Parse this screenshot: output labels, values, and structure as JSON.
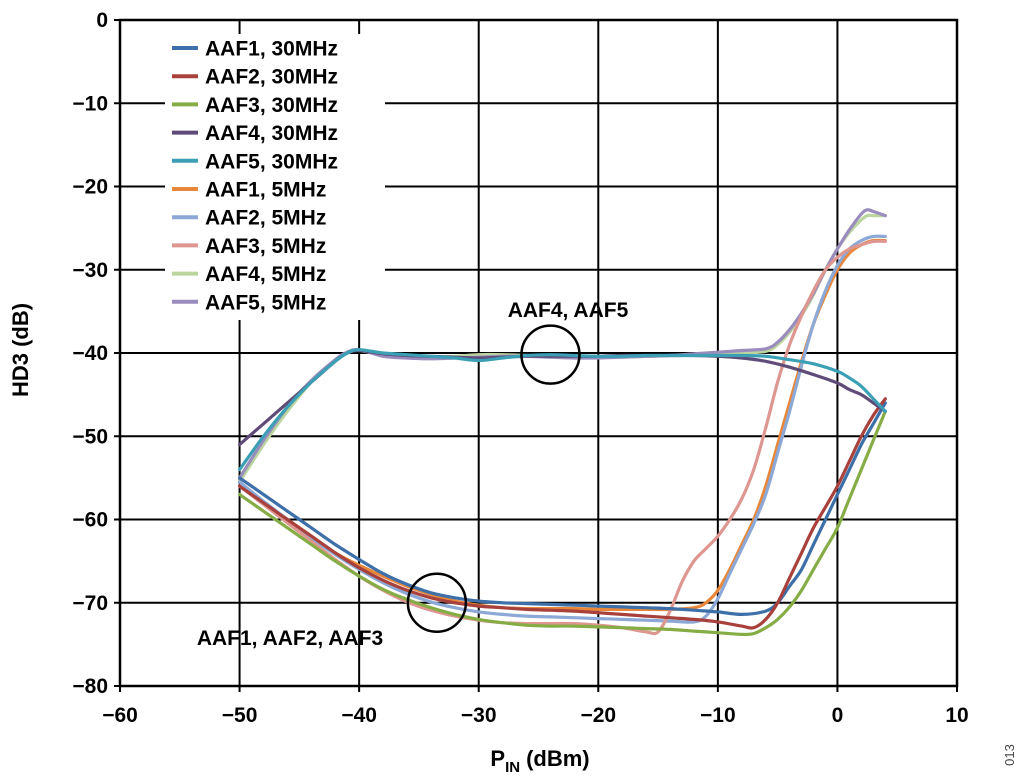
{
  "figure_id": "013",
  "chart_data": {
    "type": "line",
    "title": "",
    "xlabel": "P",
    "xlabel_sub": "IN",
    "xlabel_unit": "(dBm)",
    "ylabel": "HD3 (dB)",
    "xlim": [
      -60,
      10
    ],
    "ylim": [
      -80,
      0
    ],
    "xticks": [
      -60,
      -50,
      -40,
      -30,
      -20,
      -10,
      0,
      10
    ],
    "yticks": [
      0,
      -10,
      -20,
      -30,
      -40,
      -50,
      -60,
      -70,
      -80
    ],
    "xtick_labels": [
      "−60",
      "−50",
      "−40",
      "−30",
      "−20",
      "−10",
      "0",
      "10"
    ],
    "ytick_labels": [
      "0",
      "−10",
      "−20",
      "−30",
      "−40",
      "−50",
      "−60",
      "−70",
      "−80"
    ],
    "grid": true,
    "legend_position": "top-left",
    "series": [
      {
        "name": "AAF1, 30MHz",
        "color": "#3d6fa8",
        "x": [
          -50,
          -48,
          -46,
          -44,
          -42,
          -40,
          -38,
          -36,
          -34,
          -32,
          -30,
          -28,
          -26,
          -24,
          -22,
          -20,
          -18,
          -16,
          -14,
          -12,
          -10,
          -8,
          -6,
          -5,
          -4,
          -3,
          -2,
          -1,
          0,
          1,
          2,
          3,
          4
        ],
        "y": [
          -55,
          -57,
          -59,
          -61,
          -63,
          -64.8,
          -66.5,
          -67.8,
          -68.8,
          -69.4,
          -69.8,
          -70,
          -70.1,
          -70.2,
          -70.3,
          -70.4,
          -70.5,
          -70.6,
          -70.7,
          -70.9,
          -71.1,
          -71.4,
          -71,
          -70,
          -68,
          -66,
          -63,
          -60,
          -57,
          -54,
          -51,
          -48.5,
          -46
        ]
      },
      {
        "name": "AAF2, 30MHz",
        "color": "#a8403c",
        "x": [
          -50,
          -48,
          -46,
          -44,
          -42,
          -40,
          -38,
          -36,
          -34,
          -32,
          -30,
          -28,
          -26,
          -24,
          -22,
          -20,
          -18,
          -16,
          -14,
          -12,
          -10,
          -8,
          -7,
          -6,
          -5,
          -4,
          -3,
          -2,
          -1,
          0,
          1,
          2,
          3,
          4
        ],
        "y": [
          -56,
          -58,
          -60,
          -62,
          -64,
          -65.8,
          -67.3,
          -68.5,
          -69.4,
          -70,
          -70.4,
          -70.6,
          -70.8,
          -70.9,
          -71,
          -71.2,
          -71.4,
          -71.6,
          -71.8,
          -72,
          -72.3,
          -72.8,
          -73,
          -72,
          -70,
          -67,
          -64,
          -61,
          -58.5,
          -56,
          -53,
          -50,
          -47.5,
          -45.5
        ]
      },
      {
        "name": "AAF3, 30MHz",
        "color": "#86ad45",
        "x": [
          -50,
          -48,
          -46,
          -44,
          -42,
          -40,
          -38,
          -36,
          -34,
          -32,
          -30,
          -28,
          -26,
          -24,
          -22,
          -20,
          -18,
          -16,
          -14,
          -12,
          -10,
          -8,
          -7,
          -6,
          -5,
          -4,
          -3,
          -2,
          -1,
          0,
          1,
          2,
          3,
          4
        ],
        "y": [
          -57,
          -59,
          -61,
          -63,
          -65,
          -66.8,
          -68.4,
          -69.6,
          -70.6,
          -71.4,
          -72,
          -72.4,
          -72.7,
          -72.8,
          -72.8,
          -72.9,
          -73,
          -73.1,
          -73.2,
          -73.4,
          -73.6,
          -73.8,
          -73.7,
          -73,
          -72,
          -70.5,
          -68.5,
          -66,
          -63.5,
          -61,
          -57.5,
          -54,
          -50.5,
          -47
        ]
      },
      {
        "name": "AAF4, 30MHz",
        "color": "#5f4b78",
        "x": [
          -50,
          -48,
          -46,
          -44,
          -42,
          -41,
          -40,
          -38,
          -36,
          -34,
          -32,
          -30,
          -28,
          -26,
          -24,
          -22,
          -20,
          -18,
          -16,
          -14,
          -12,
          -10,
          -8,
          -6,
          -4,
          -2,
          0,
          1,
          2,
          3,
          4
        ],
        "y": [
          -51,
          -48.5,
          -46,
          -43.5,
          -41,
          -40,
          -39.7,
          -40.1,
          -40.3,
          -40.4,
          -40.5,
          -40.6,
          -40.5,
          -40.4,
          -40.4,
          -40.4,
          -40.4,
          -40.3,
          -40.3,
          -40.3,
          -40.3,
          -40.4,
          -40.6,
          -41,
          -41.7,
          -42.6,
          -43.6,
          -44.4,
          -45,
          -46,
          -47
        ]
      },
      {
        "name": "AAF5, 30MHz",
        "color": "#3ba0b5",
        "x": [
          -50,
          -48,
          -46,
          -44,
          -42,
          -41,
          -40,
          -38,
          -36,
          -34,
          -32,
          -30,
          -28,
          -26,
          -24,
          -22,
          -20,
          -18,
          -16,
          -14,
          -12,
          -10,
          -8,
          -6,
          -4,
          -2,
          0,
          1,
          2,
          3,
          4
        ],
        "y": [
          -54,
          -50,
          -46.5,
          -43.5,
          -41,
          -40,
          -39.6,
          -40,
          -40.2,
          -40.4,
          -40.6,
          -40.9,
          -40.6,
          -40.3,
          -40.2,
          -40.3,
          -40.4,
          -40.4,
          -40.3,
          -40.3,
          -40.3,
          -40.3,
          -40.3,
          -40.4,
          -40.8,
          -41.3,
          -42.2,
          -43,
          -44,
          -45.5,
          -47
        ]
      },
      {
        "name": "AAF1, 5MHz",
        "color": "#e8873a",
        "x": [
          -50,
          -48,
          -46,
          -44,
          -42,
          -40,
          -38,
          -36,
          -34,
          -32,
          -30,
          -28,
          -26,
          -24,
          -22,
          -20,
          -18,
          -16,
          -14,
          -12,
          -11,
          -10,
          -9,
          -8,
          -7,
          -6,
          -5,
          -4,
          -3,
          -2,
          -1,
          0,
          1,
          2,
          3,
          4
        ],
        "y": [
          -56,
          -58,
          -60,
          -62,
          -64,
          -65.5,
          -66.8,
          -68,
          -69,
          -69.8,
          -70.3,
          -70.6,
          -70.7,
          -70.7,
          -70.7,
          -70.8,
          -70.8,
          -70.8,
          -70.8,
          -70.6,
          -70,
          -68.5,
          -66,
          -63,
          -60,
          -56,
          -51,
          -46,
          -41,
          -36.5,
          -33,
          -30,
          -28,
          -27,
          -26.5,
          -26.5
        ]
      },
      {
        "name": "AAF2, 5MHz",
        "color": "#8ca8d6",
        "x": [
          -50,
          -48,
          -46,
          -44,
          -42,
          -40,
          -38,
          -36,
          -34,
          -32,
          -30,
          -28,
          -26,
          -24,
          -22,
          -20,
          -18,
          -16,
          -14,
          -12,
          -11,
          -10,
          -9,
          -8,
          -7,
          -6,
          -5,
          -4,
          -3,
          -2,
          -1,
          0,
          1,
          2,
          3,
          4
        ],
        "y": [
          -55.5,
          -57.8,
          -60,
          -62.2,
          -64.2,
          -66,
          -67.6,
          -68.9,
          -69.9,
          -70.6,
          -71.1,
          -71.4,
          -71.6,
          -71.7,
          -71.8,
          -71.9,
          -72,
          -72.1,
          -72.2,
          -72.3,
          -71.6,
          -69.5,
          -66.5,
          -63.5,
          -60.5,
          -57,
          -52,
          -47,
          -41.5,
          -36.5,
          -32.5,
          -29.5,
          -27.5,
          -26.5,
          -26,
          -26
        ]
      },
      {
        "name": "AAF3, 5MHz",
        "color": "#dd9690",
        "x": [
          -50,
          -48,
          -46,
          -44,
          -42,
          -40,
          -38,
          -36,
          -34,
          -32,
          -30,
          -28,
          -26,
          -24,
          -22,
          -20,
          -18,
          -16,
          -15,
          -14,
          -13,
          -12,
          -11,
          -10,
          -9,
          -8,
          -7,
          -6,
          -5,
          -4,
          -3,
          -2,
          -1,
          0,
          1,
          2,
          3,
          4
        ],
        "y": [
          -56,
          -58.2,
          -60.4,
          -62.6,
          -64.8,
          -66.8,
          -68.5,
          -69.9,
          -70.9,
          -71.6,
          -72.1,
          -72.4,
          -72.5,
          -72.5,
          -72.5,
          -72.7,
          -73,
          -73.5,
          -73.5,
          -71,
          -67.5,
          -65,
          -63.5,
          -62,
          -60,
          -57.5,
          -54,
          -49,
          -43.5,
          -39,
          -35.5,
          -32.5,
          -30,
          -28.5,
          -27.5,
          -27,
          -26.6,
          -26.6
        ]
      },
      {
        "name": "AAF4, 5MHz",
        "color": "#bcd49e",
        "x": [
          -50,
          -48,
          -46,
          -44,
          -42,
          -41,
          -40,
          -38,
          -36,
          -34,
          -32,
          -30,
          -28,
          -26,
          -24,
          -22,
          -20,
          -18,
          -16,
          -14,
          -12,
          -10,
          -8,
          -6,
          -5,
          -4,
          -3,
          -2,
          -1,
          0,
          1,
          2,
          2.5,
          3,
          4
        ],
        "y": [
          -55.5,
          -51,
          -47,
          -43.5,
          -41,
          -40,
          -39.7,
          -40.2,
          -40.4,
          -40.5,
          -40.4,
          -40.2,
          -40.2,
          -40.3,
          -40.5,
          -40.6,
          -40.5,
          -40.5,
          -40.4,
          -40.3,
          -40.2,
          -40.1,
          -40,
          -39.8,
          -39,
          -37.5,
          -35.5,
          -33,
          -30,
          -27.5,
          -25.5,
          -24,
          -23.5,
          -23.5,
          -23.5
        ]
      },
      {
        "name": "AAF5, 5MHz",
        "color": "#9a8cbd",
        "x": [
          -50,
          -48,
          -46,
          -44,
          -42,
          -41,
          -40,
          -38,
          -36,
          -34,
          -32,
          -30,
          -28,
          -26,
          -24,
          -22,
          -20,
          -18,
          -16,
          -14,
          -12,
          -10,
          -8,
          -6,
          -5,
          -4,
          -3,
          -2,
          -1,
          0,
          1,
          2,
          2.5,
          3,
          4
        ],
        "y": [
          -55,
          -50.5,
          -46.5,
          -43.3,
          -40.8,
          -39.9,
          -39.6,
          -40.4,
          -40.6,
          -40.7,
          -40.6,
          -40.5,
          -40.4,
          -40.4,
          -40.5,
          -40.6,
          -40.6,
          -40.5,
          -40.4,
          -40.3,
          -40.1,
          -39.9,
          -39.7,
          -39.5,
          -38.7,
          -37.2,
          -35.2,
          -32.8,
          -30,
          -27.5,
          -25.2,
          -23.3,
          -22.8,
          -23,
          -23.5
        ]
      }
    ],
    "annotations": [
      {
        "text": "AAF4, AAF5",
        "circle_at": [
          -24,
          -40.2
        ]
      },
      {
        "text": "AAF1, AAF2, AAF3",
        "circle_at": [
          -33.5,
          -70
        ]
      }
    ]
  }
}
